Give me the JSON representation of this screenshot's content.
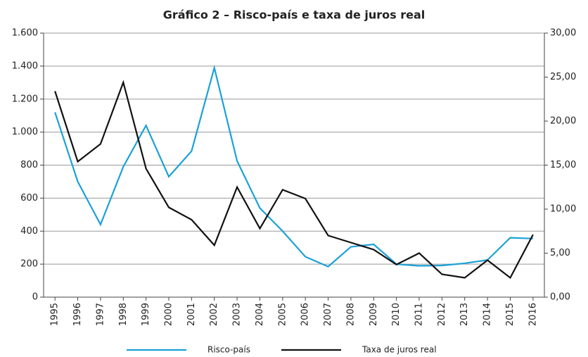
{
  "chart_data": {
    "type": "line",
    "title": "Gráfico 2 – Risco-país e taxa de juros real",
    "categories": [
      "1995",
      "1996",
      "1997",
      "1998",
      "1999",
      "2000",
      "2001",
      "2002",
      "2003",
      "2004",
      "2005",
      "2006",
      "2007",
      "2008",
      "2009",
      "2010",
      "2011",
      "2012",
      "2013",
      "2014",
      "2015",
      "2016"
    ],
    "series": [
      {
        "name": "Risco-país",
        "color": "#1ba1d8",
        "values": [
          1120,
          700,
          440,
          790,
          1040,
          730,
          885,
          1390,
          825,
          540,
          400,
          245,
          185,
          305,
          320,
          200,
          190,
          192,
          205,
          225,
          360,
          355
        ]
      },
      {
        "name": "Taxa de juros real",
        "color": "#111111",
        "axis": "y2",
        "values": [
          23.4,
          15.4,
          17.4,
          24.4,
          14.6,
          10.2,
          8.8,
          5.9,
          12.5,
          7.8,
          12.2,
          11.2,
          7.0,
          6.2,
          5.4,
          3.7,
          5.0,
          2.6,
          2.2,
          4.2,
          2.2,
          7.1
        ]
      }
    ],
    "ylim": [
      0,
      1600
    ],
    "yticks": [
      0,
      {
        "value": 200,
        "label": "200"
      },
      400,
      600,
      800,
      {
        "value": 1000,
        "label": "1.000"
      },
      {
        "value": 1200,
        "label": "1.200"
      },
      {
        "value": 1400,
        "label": "1.400"
      },
      {
        "value": 1600,
        "label": "1.600"
      }
    ],
    "y2lim": [
      0,
      30
    ],
    "y2ticks": [
      {
        "value": 0,
        "label": "0,00"
      },
      {
        "value": 5,
        "label": "5,00"
      },
      {
        "value": 10,
        "label": "10,00"
      },
      {
        "value": 15,
        "label": "15,00"
      },
      {
        "value": 20,
        "label": "20,00"
      },
      {
        "value": 25,
        "label": "25,00"
      },
      {
        "value": 30,
        "label": "30,00"
      }
    ],
    "grid": true,
    "legend": "bottom"
  }
}
